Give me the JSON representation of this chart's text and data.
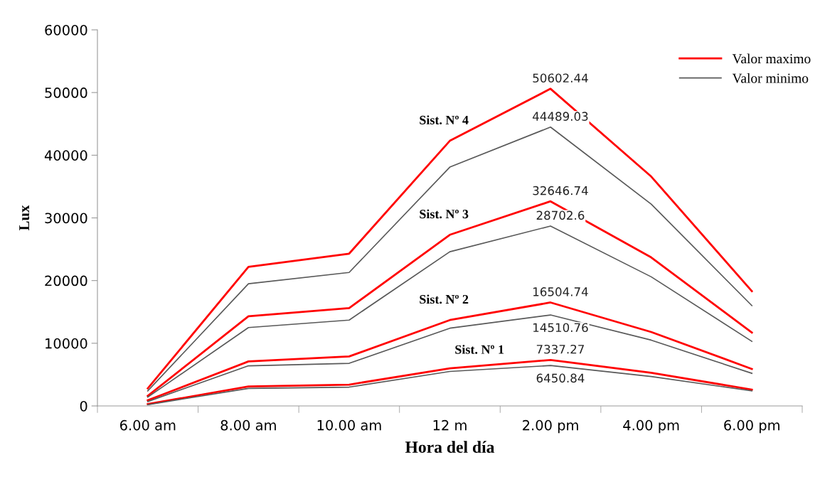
{
  "chart_data": {
    "type": "line",
    "xlabel": "Hora del día",
    "ylabel": "Lux",
    "categories": [
      "6.00 am",
      "8.00 am",
      "10.00 am",
      "12 m",
      "2.00 pm",
      "4.00 pm",
      "6.00 pm"
    ],
    "ylim": [
      0,
      60000
    ],
    "yticks": [
      0,
      10000,
      20000,
      30000,
      40000,
      50000,
      60000
    ],
    "grid": false,
    "legend": "top right",
    "marker": "none",
    "line_style": "solid",
    "series": [
      {
        "name": "Valor maximo",
        "color": "#ff0000",
        "values": [
          2800,
          22200,
          24300,
          42300,
          50602.44,
          36600,
          18300
        ],
        "value_labels": [
          null,
          null,
          null,
          null,
          "50602.44",
          null,
          null
        ]
      },
      {
        "name": "Valor minimo",
        "color": "#595959",
        "values": [
          2400,
          19500,
          21300,
          38100,
          44489.03,
          32200,
          16000
        ],
        "value_labels": [
          null,
          null,
          null,
          null,
          "44489.03",
          null,
          null
        ]
      },
      {
        "color": "#ff0000",
        "values": [
          1600,
          14300,
          15600,
          27300,
          32646.74,
          23700,
          11700
        ],
        "value_labels": [
          null,
          null,
          null,
          null,
          "32646.74",
          null,
          null
        ]
      },
      {
        "color": "#595959",
        "values": [
          1400,
          12500,
          13700,
          24600,
          28702.6,
          20600,
          10300
        ],
        "value_labels": [
          null,
          null,
          null,
          null,
          "28702.6",
          null,
          null
        ]
      },
      {
        "color": "#ff0000",
        "values": [
          900,
          7100,
          7900,
          13700,
          16504.74,
          11800,
          5900
        ],
        "value_labels": [
          null,
          null,
          null,
          null,
          "16504.74",
          null,
          null
        ]
      },
      {
        "color": "#595959",
        "values": [
          700,
          6400,
          6800,
          12400,
          14510.76,
          10500,
          5200
        ],
        "value_labels": [
          null,
          null,
          null,
          null,
          "14510.76",
          null,
          null
        ]
      },
      {
        "color": "#ff0000",
        "values": [
          300,
          3100,
          3400,
          6000,
          7337.27,
          5300,
          2600
        ],
        "value_labels": [
          null,
          null,
          null,
          null,
          "7337.27",
          null,
          null
        ]
      },
      {
        "color": "#595959",
        "values": [
          200,
          2800,
          3000,
          5500,
          6450.84,
          4700,
          2400
        ],
        "value_labels": [
          null,
          null,
          null,
          null,
          "6450.84",
          null,
          null
        ]
      }
    ],
    "annotations": [
      "Sist. Nº 4",
      "Sist. Nº 3",
      "Sist. Nº 2",
      "Sist. Nº 1"
    ]
  }
}
